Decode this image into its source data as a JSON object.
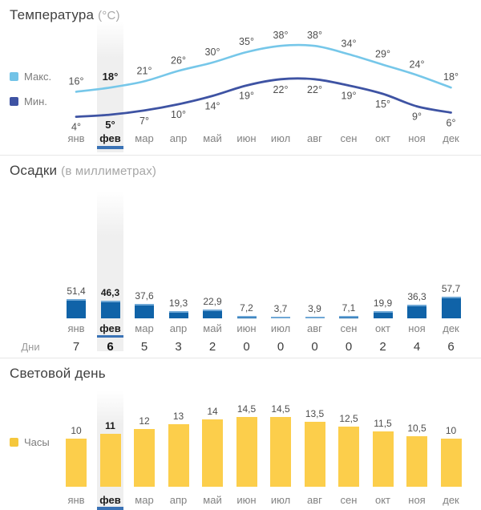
{
  "months": {
    "labels": [
      "янв",
      "фев",
      "мар",
      "апр",
      "май",
      "июн",
      "июл",
      "авг",
      "сен",
      "окт",
      "ноя",
      "дек"
    ],
    "selected": "фев",
    "selected_index": 1
  },
  "colors": {
    "max_line": "#76c7e9",
    "min_line": "#3e53a3",
    "max_swatch": "#72c3e7",
    "min_swatch": "#3e53a3",
    "precip_bar": "#1063a8",
    "precip_cap": "#6fa8d6",
    "daylight_bar": "#fcce4b",
    "daylight_swatch": "#f5c73c",
    "selected_underline": "#3a72b5",
    "highlight_band": "#efefef"
  },
  "sections": {
    "temperature": {
      "title": "Температура",
      "unit": "(°C)",
      "legend_max": "Макс.",
      "legend_min": "Мин."
    },
    "precipitation": {
      "title": "Осадки",
      "unit": "(в миллиметрах)",
      "days_label": "Дни"
    },
    "daylight": {
      "title": "Световой день",
      "legend": "Часы"
    }
  },
  "chart_data": [
    {
      "type": "line",
      "title": "Температура (°C)",
      "categories": [
        "янв",
        "фев",
        "мар",
        "апр",
        "май",
        "июн",
        "июл",
        "авг",
        "сен",
        "окт",
        "ноя",
        "дек"
      ],
      "selected_category": "фев",
      "unit_suffix": "°",
      "legend_position": "left",
      "series": [
        {
          "name": "Макс.",
          "values": [
            16,
            18,
            21,
            26,
            30,
            35,
            38,
            38,
            34,
            29,
            24,
            18
          ]
        },
        {
          "name": "Мин.",
          "values": [
            4,
            5,
            7,
            10,
            14,
            19,
            22,
            22,
            19,
            15,
            9,
            6
          ]
        }
      ]
    },
    {
      "type": "bar",
      "title": "Осадки (в миллиметрах)",
      "categories": [
        "янв",
        "фев",
        "мар",
        "апр",
        "май",
        "июн",
        "июл",
        "авг",
        "сен",
        "окт",
        "ноя",
        "дек"
      ],
      "selected_category": "фев",
      "values": [
        51.4,
        46.3,
        37.6,
        19.3,
        22.9,
        7.2,
        3.7,
        3.9,
        7.1,
        19.9,
        36.3,
        57.7
      ],
      "value_labels": [
        "51,4",
        "46,3",
        "37,6",
        "19,3",
        "22,9",
        "7,2",
        "3,7",
        "3,9",
        "7,1",
        "19,9",
        "36,3",
        "57,7"
      ],
      "days_label": "Дни",
      "days": [
        7,
        6,
        5,
        3,
        2,
        0,
        0,
        0,
        0,
        2,
        4,
        6
      ]
    },
    {
      "type": "bar",
      "title": "Световой день",
      "categories": [
        "янв",
        "фев",
        "мар",
        "апр",
        "май",
        "июн",
        "июл",
        "авг",
        "сен",
        "окт",
        "ноя",
        "дек"
      ],
      "selected_category": "фев",
      "legend": "Часы",
      "values": [
        10,
        11,
        12,
        13,
        14,
        14.5,
        14.5,
        13.5,
        12.5,
        11.5,
        10.5,
        10
      ],
      "value_labels": [
        "10",
        "11",
        "12",
        "13",
        "14",
        "14,5",
        "14,5",
        "13,5",
        "12,5",
        "11,5",
        "10,5",
        "10"
      ]
    }
  ]
}
